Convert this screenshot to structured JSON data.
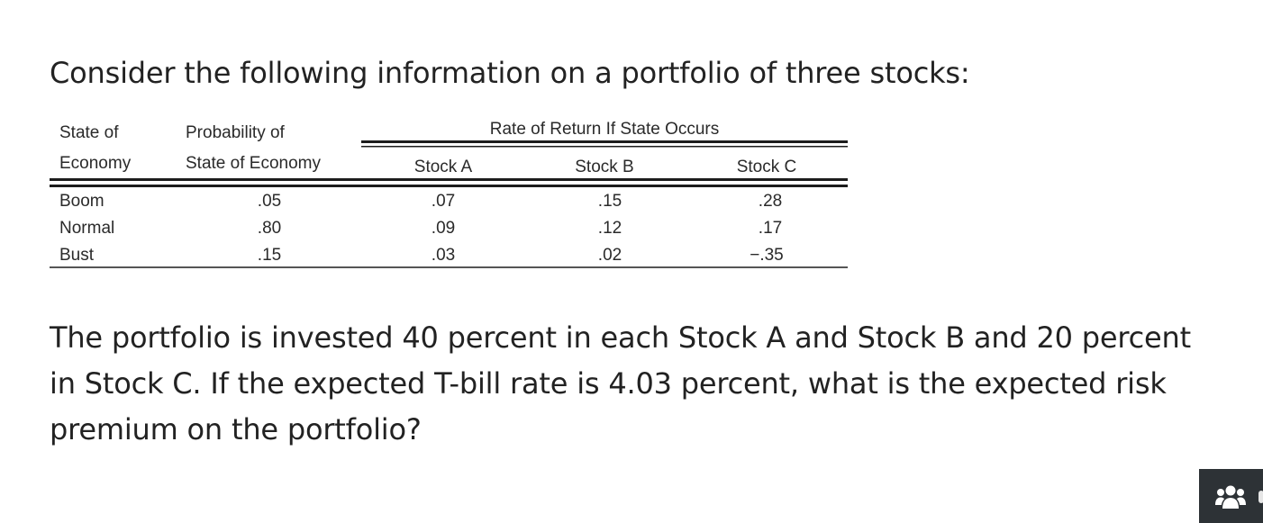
{
  "intro": "Consider the following information on a portfolio of three stocks:",
  "table": {
    "state_header": [
      "State of",
      "Economy"
    ],
    "probability_header": [
      "Probability of",
      "State of Economy"
    ],
    "group_header": "Rate of Return If State Occurs",
    "stock_headers": [
      "Stock A",
      "Stock B",
      "Stock C"
    ],
    "rows": [
      {
        "state": "Boom",
        "probability": ".05",
        "a": ".07",
        "b": ".15",
        "c": ".28"
      },
      {
        "state": "Normal",
        "probability": ".80",
        "a": ".09",
        "b": ".12",
        "c": ".17"
      },
      {
        "state": "Bust",
        "probability": ".15",
        "a": ".03",
        "b": ".02",
        "c": "−.35"
      }
    ]
  },
  "question_lines": [
    "The portfolio is invested 40 percent in each Stock A and Stock B and 20 percent",
    "in Stock C. If the expected T-bill rate is 4.03 percent, what is the expected risk",
    "premium on the portfolio?"
  ],
  "corner_button": {
    "icon": "users-icon",
    "background": "#2d3236"
  }
}
